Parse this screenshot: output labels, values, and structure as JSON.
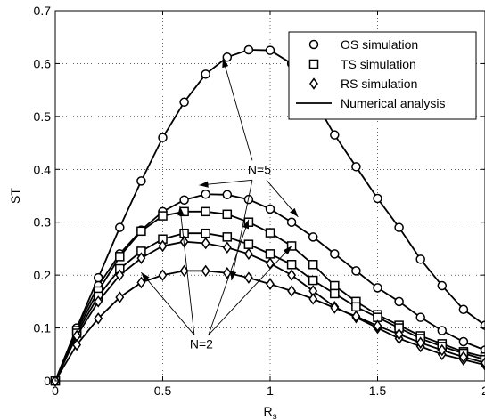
{
  "chart_data": {
    "type": "line",
    "xlabel": "R",
    "xlabel_sub": "s",
    "ylabel": "ST",
    "xlim": [
      0,
      2
    ],
    "ylim": [
      0,
      0.7
    ],
    "xticks": [
      0,
      0.5,
      1,
      1.5,
      2
    ],
    "xtick_labels": [
      "0",
      "0.5",
      "1",
      "1.5",
      "2"
    ],
    "yticks": [
      0,
      0.1,
      0.2,
      0.3,
      0.4,
      0.5,
      0.6,
      0.7
    ],
    "ytick_labels": [
      "0",
      "0.1",
      "0.2",
      "0.3",
      "0.4",
      "0.5",
      "0.6",
      "0.7"
    ],
    "grid": true,
    "legend_position": "top-right",
    "legend": [
      {
        "label": "OS simulation",
        "marker": "circle"
      },
      {
        "label": "TS simulation",
        "marker": "square"
      },
      {
        "label": "RS simulation",
        "marker": "diamond"
      },
      {
        "label": "Numerical analysis",
        "marker": "line"
      }
    ],
    "x": [
      0,
      0.1,
      0.2,
      0.3,
      0.4,
      0.5,
      0.6,
      0.7,
      0.8,
      0.9,
      1.0,
      1.1,
      1.2,
      1.3,
      1.4,
      1.5,
      1.6,
      1.7,
      1.8,
      1.9,
      2.0
    ],
    "series": [
      {
        "marker": "circle",
        "group": "N=5",
        "values": [
          0,
          0.1,
          0.195,
          0.29,
          0.378,
          0.46,
          0.527,
          0.58,
          0.612,
          0.626,
          0.625,
          0.6,
          0.535,
          0.465,
          0.405,
          0.345,
          0.29,
          0.23,
          0.18,
          0.135,
          0.105
        ]
      },
      {
        "marker": "circle",
        "group": "N=2",
        "values": [
          0,
          0.1,
          0.18,
          0.24,
          0.285,
          0.32,
          0.342,
          0.353,
          0.352,
          0.343,
          0.325,
          0.3,
          0.272,
          0.24,
          0.208,
          0.176,
          0.15,
          0.12,
          0.095,
          0.074,
          0.058
        ]
      },
      {
        "marker": "square",
        "group": "N=5",
        "values": [
          0,
          0.095,
          0.17,
          0.235,
          0.283,
          0.312,
          0.32,
          0.32,
          0.315,
          0.3,
          0.28,
          0.255,
          0.22,
          0.18,
          0.15,
          0.125,
          0.105,
          0.085,
          0.07,
          0.055,
          0.045
        ]
      },
      {
        "marker": "square",
        "group": "N=2",
        "values": [
          0,
          0.09,
          0.16,
          0.212,
          0.245,
          0.268,
          0.279,
          0.279,
          0.272,
          0.258,
          0.24,
          0.22,
          0.19,
          0.165,
          0.14,
          0.12,
          0.1,
          0.08,
          0.065,
          0.052,
          0.04
        ]
      },
      {
        "marker": "diamond",
        "group": "N=5",
        "values": [
          0,
          0.085,
          0.15,
          0.2,
          0.232,
          0.255,
          0.263,
          0.26,
          0.252,
          0.24,
          0.222,
          0.2,
          0.17,
          0.14,
          0.12,
          0.1,
          0.08,
          0.065,
          0.05,
          0.04,
          0.03
        ]
      },
      {
        "marker": "diamond",
        "group": "N=2",
        "values": [
          0,
          0.068,
          0.118,
          0.158,
          0.186,
          0.2,
          0.208,
          0.208,
          0.204,
          0.195,
          0.183,
          0.17,
          0.155,
          0.138,
          0.122,
          0.104,
          0.088,
          0.072,
          0.058,
          0.045,
          0.034
        ]
      }
    ],
    "annotations": [
      {
        "text": "N=5",
        "at": [
          0.95,
          0.4
        ],
        "arrows_to": [
          [
            0.78,
            0.61
          ],
          [
            0.67,
            0.37
          ],
          [
            0.82,
            0.19
          ],
          [
            1.13,
            0.31
          ]
        ]
      },
      {
        "text": "N=2",
        "at": [
          0.68,
          0.07
        ],
        "arrows_to": [
          [
            0.4,
            0.205
          ],
          [
            0.58,
            0.33
          ],
          [
            0.9,
            0.305
          ],
          [
            1.1,
            0.255
          ]
        ]
      }
    ]
  }
}
